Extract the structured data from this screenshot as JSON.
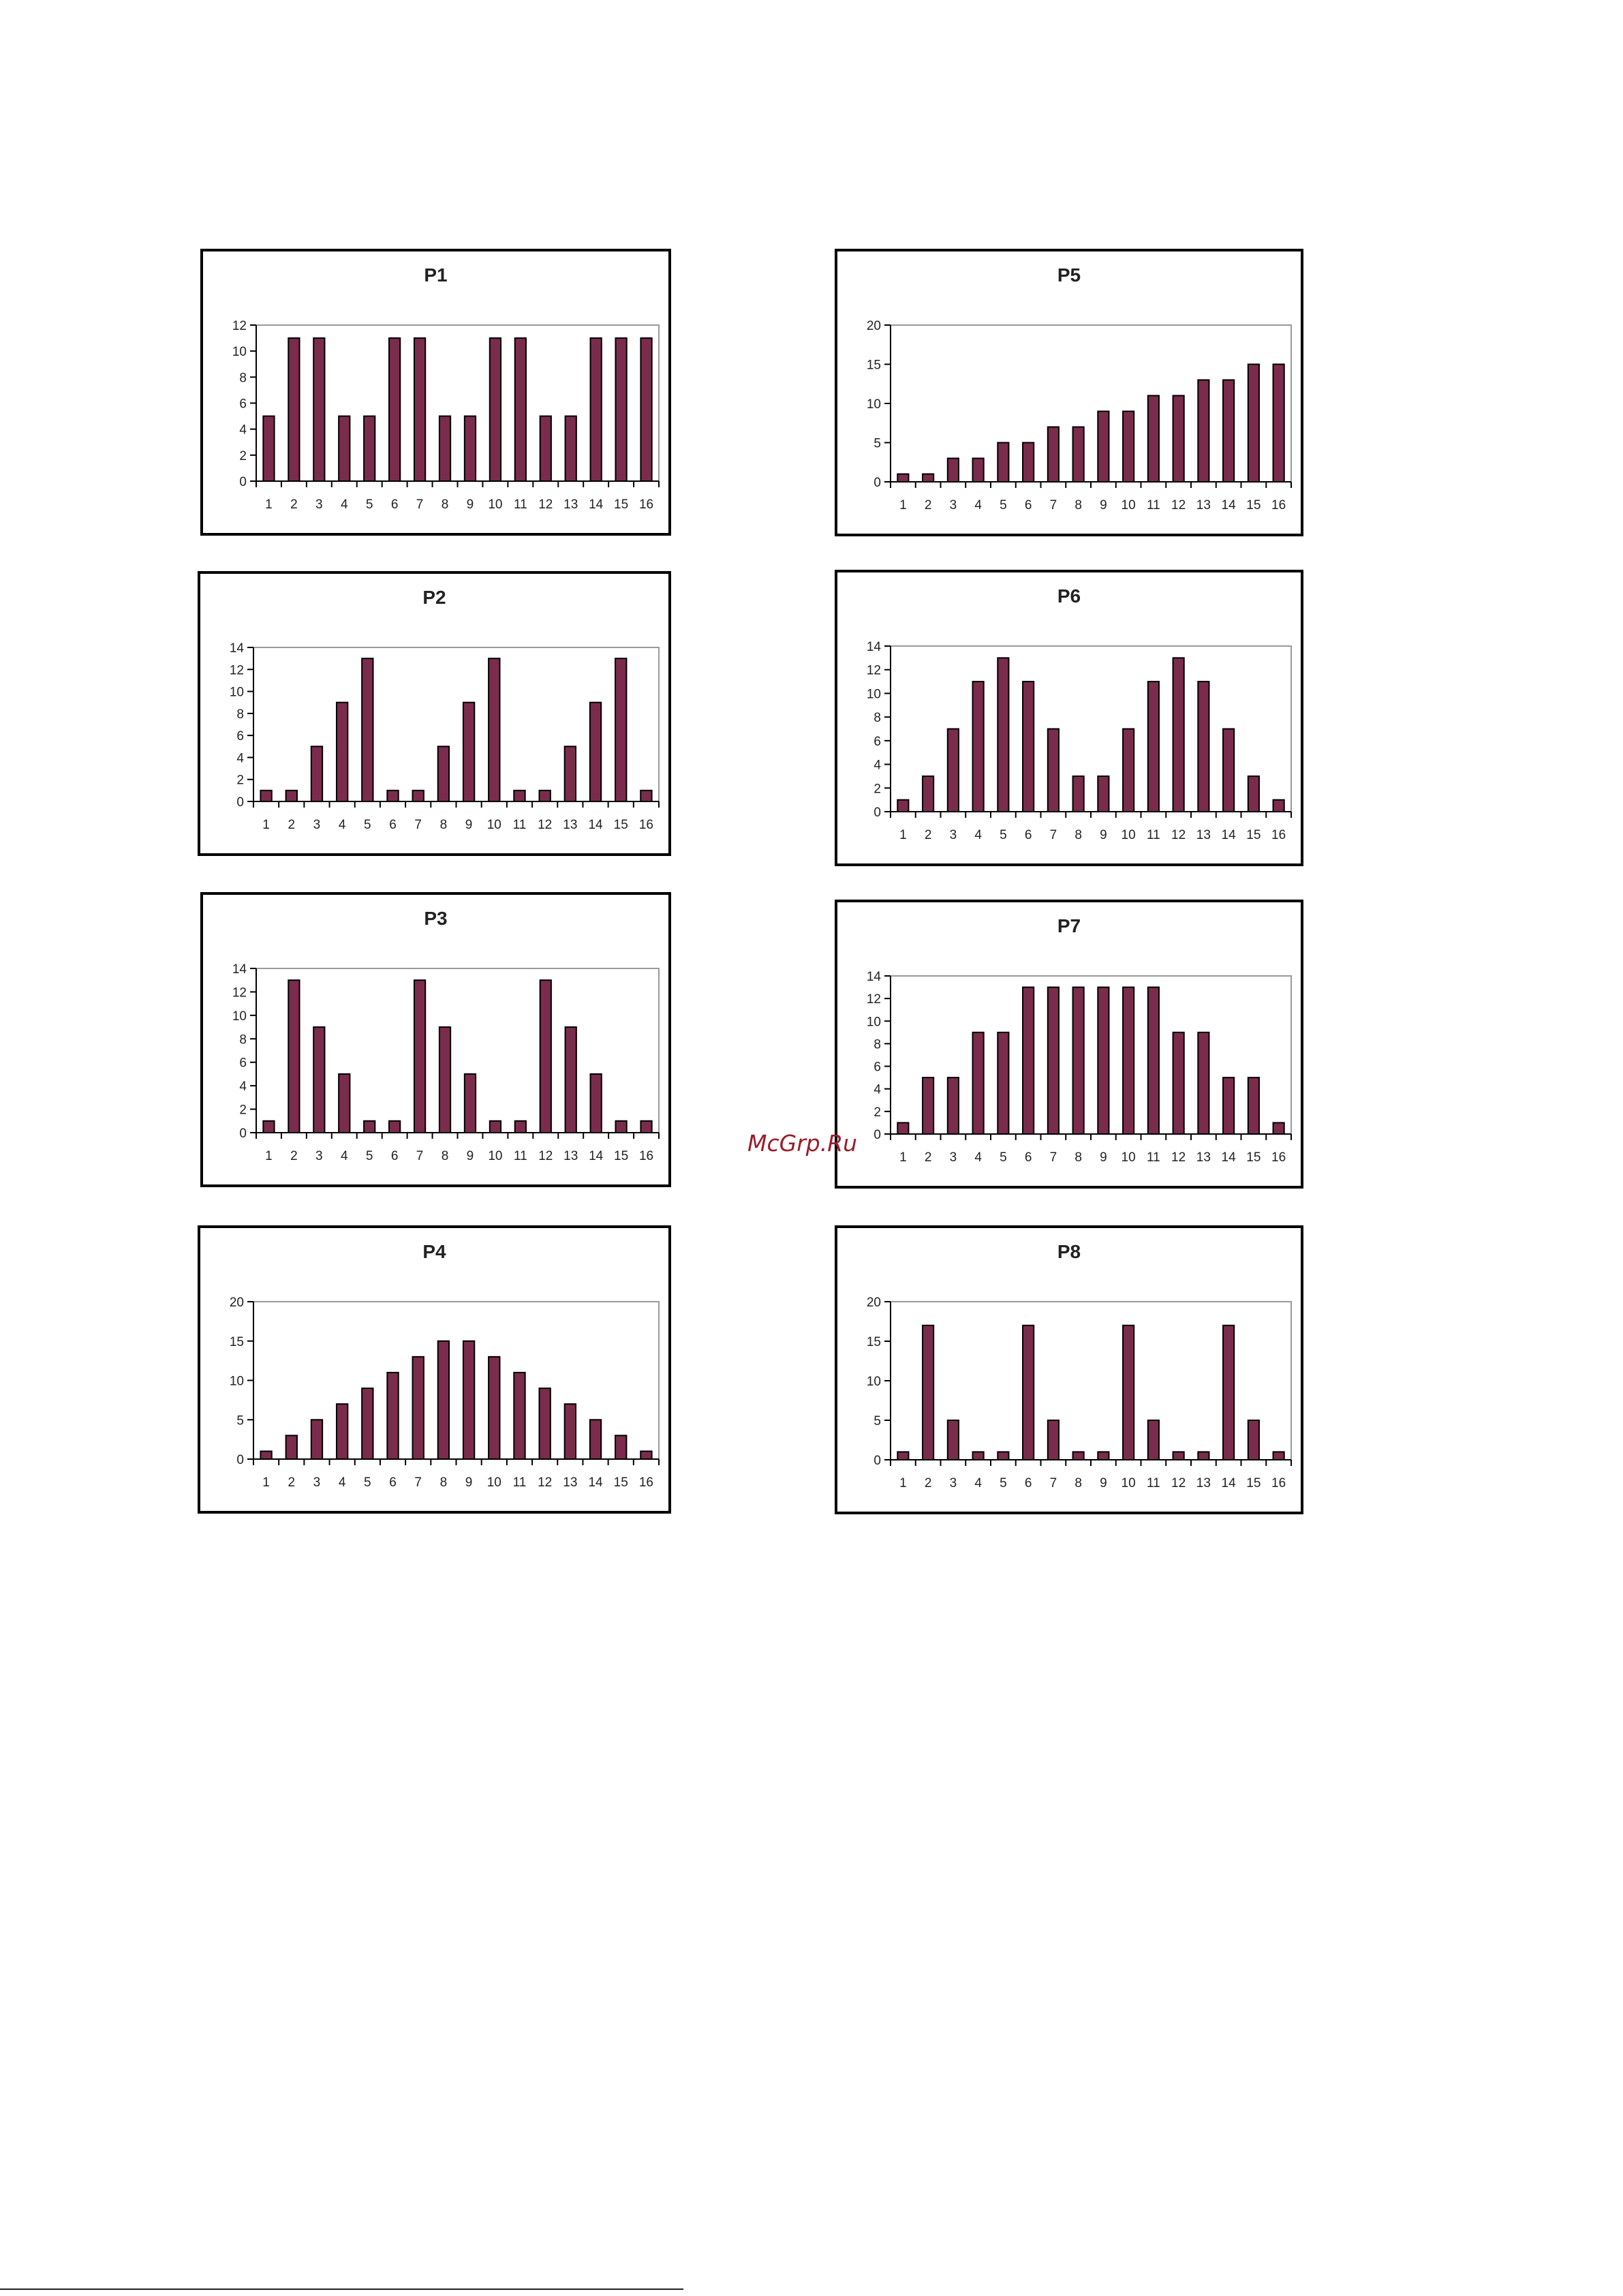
{
  "watermark": "McGrp.Ru",
  "colors": {
    "bar_fill": "#7b2c4c",
    "bar_stroke": "#000000",
    "frame": "#000000"
  },
  "chart_data": [
    {
      "type": "bar",
      "title": "P1",
      "categories": [
        "1",
        "2",
        "3",
        "4",
        "5",
        "6",
        "7",
        "8",
        "9",
        "10",
        "11",
        "12",
        "13",
        "14",
        "15",
        "16"
      ],
      "values": [
        5,
        11,
        11,
        5,
        5,
        11,
        11,
        5,
        5,
        11,
        11,
        5,
        5,
        11,
        11,
        11
      ],
      "ylim": [
        0,
        12
      ],
      "yticks": [
        0,
        2,
        4,
        6,
        8,
        10,
        12
      ],
      "xlabel": "",
      "ylabel": "",
      "legend": "none"
    },
    {
      "type": "bar",
      "title": "P2",
      "categories": [
        "1",
        "2",
        "3",
        "4",
        "5",
        "6",
        "7",
        "8",
        "9",
        "10",
        "11",
        "12",
        "13",
        "14",
        "15",
        "16"
      ],
      "values": [
        1,
        1,
        5,
        9,
        13,
        1,
        1,
        5,
        9,
        13,
        1,
        1,
        5,
        9,
        13,
        1
      ],
      "ylim": [
        0,
        14
      ],
      "yticks": [
        0,
        2,
        4,
        6,
        8,
        10,
        12,
        14
      ],
      "xlabel": "",
      "ylabel": "",
      "legend": "none"
    },
    {
      "type": "bar",
      "title": "P3",
      "categories": [
        "1",
        "2",
        "3",
        "4",
        "5",
        "6",
        "7",
        "8",
        "9",
        "10",
        "11",
        "12",
        "13",
        "14",
        "15",
        "16"
      ],
      "values": [
        1,
        13,
        9,
        5,
        1,
        1,
        13,
        9,
        5,
        1,
        1,
        13,
        9,
        5,
        1,
        1
      ],
      "ylim": [
        0,
        14
      ],
      "yticks": [
        0,
        2,
        4,
        6,
        8,
        10,
        12,
        14
      ],
      "xlabel": "",
      "ylabel": "",
      "legend": "none"
    },
    {
      "type": "bar",
      "title": "P4",
      "categories": [
        "1",
        "2",
        "3",
        "4",
        "5",
        "6",
        "7",
        "8",
        "9",
        "10",
        "11",
        "12",
        "13",
        "14",
        "15",
        "16"
      ],
      "values": [
        1,
        3,
        5,
        7,
        9,
        11,
        13,
        15,
        15,
        13,
        11,
        9,
        7,
        5,
        3,
        1
      ],
      "ylim": [
        0,
        20
      ],
      "yticks": [
        0,
        5,
        10,
        15,
        20
      ],
      "xlabel": "",
      "ylabel": "",
      "legend": "none"
    },
    {
      "type": "bar",
      "title": "P5",
      "categories": [
        "1",
        "2",
        "3",
        "4",
        "5",
        "6",
        "7",
        "8",
        "9",
        "10",
        "11",
        "12",
        "13",
        "14",
        "15",
        "16"
      ],
      "values": [
        1,
        1,
        3,
        3,
        5,
        5,
        7,
        7,
        9,
        9,
        11,
        11,
        13,
        13,
        15,
        15
      ],
      "ylim": [
        0,
        20
      ],
      "yticks": [
        0,
        5,
        10,
        15,
        20
      ],
      "xlabel": "",
      "ylabel": "",
      "legend": "none"
    },
    {
      "type": "bar",
      "title": "P6",
      "categories": [
        "1",
        "2",
        "3",
        "4",
        "5",
        "6",
        "7",
        "8",
        "9",
        "10",
        "11",
        "12",
        "13",
        "14",
        "15",
        "16"
      ],
      "values": [
        1,
        3,
        7,
        11,
        13,
        11,
        7,
        3,
        3,
        7,
        11,
        13,
        11,
        7,
        3,
        1
      ],
      "ylim": [
        0,
        14
      ],
      "yticks": [
        0,
        2,
        4,
        6,
        8,
        10,
        12,
        14
      ],
      "xlabel": "",
      "ylabel": "",
      "legend": "none"
    },
    {
      "type": "bar",
      "title": "P7",
      "categories": [
        "1",
        "2",
        "3",
        "4",
        "5",
        "6",
        "7",
        "8",
        "9",
        "10",
        "11",
        "12",
        "13",
        "14",
        "15",
        "16"
      ],
      "values": [
        1,
        5,
        5,
        9,
        9,
        13,
        13,
        13,
        13,
        13,
        13,
        9,
        9,
        5,
        5,
        1
      ],
      "ylim": [
        0,
        14
      ],
      "yticks": [
        0,
        2,
        4,
        6,
        8,
        10,
        12,
        14
      ],
      "xlabel": "",
      "ylabel": "",
      "legend": "none"
    },
    {
      "type": "bar",
      "title": "P8",
      "categories": [
        "1",
        "2",
        "3",
        "4",
        "5",
        "6",
        "7",
        "8",
        "9",
        "10",
        "11",
        "12",
        "13",
        "14",
        "15",
        "16"
      ],
      "values": [
        1,
        17,
        5,
        1,
        1,
        17,
        5,
        1,
        1,
        17,
        5,
        1,
        1,
        17,
        5,
        1
      ],
      "ylim": [
        0,
        20
      ],
      "yticks": [
        0,
        5,
        10,
        15,
        20
      ],
      "xlabel": "",
      "ylabel": "",
      "legend": "none"
    }
  ]
}
